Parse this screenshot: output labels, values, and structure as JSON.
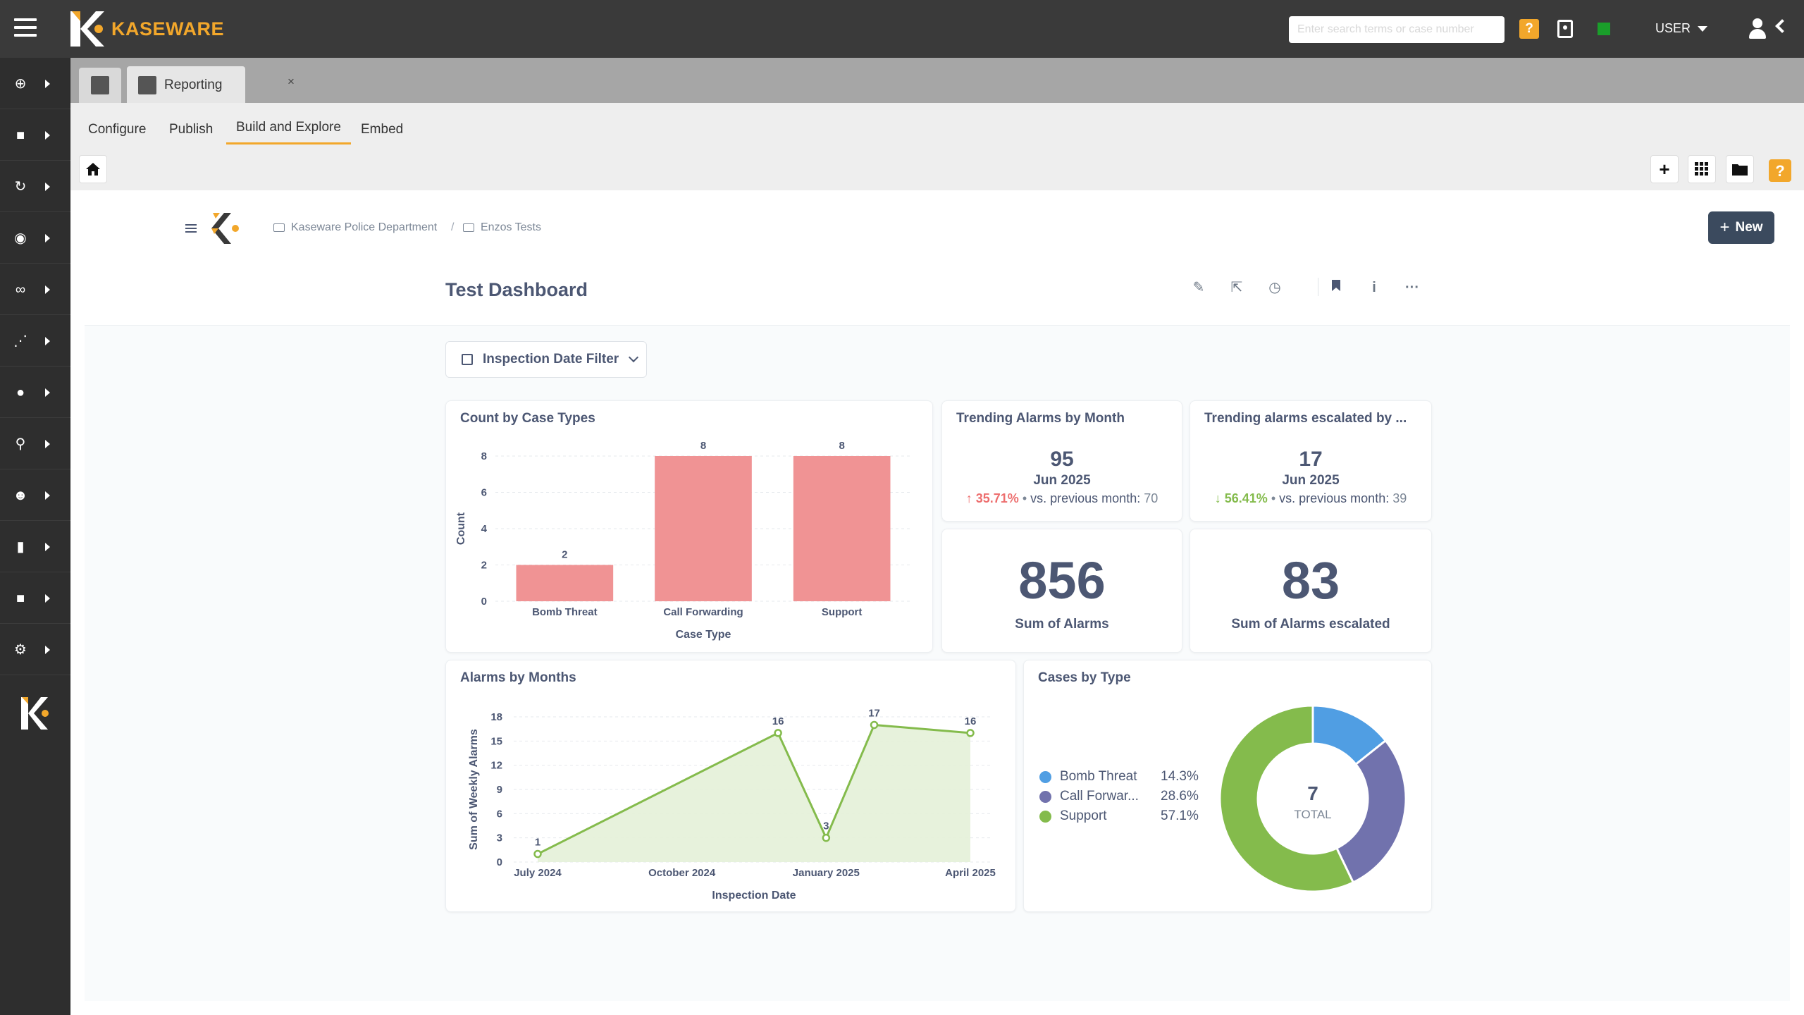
{
  "app": {
    "brand": "KASEWARE"
  },
  "topbar": {
    "search_placeholder": "Enter search terms or case number",
    "help_label": "?",
    "user_label": "USER"
  },
  "tabs": {
    "report_label": "Reporting",
    "close_label": "×"
  },
  "subnav": {
    "items": [
      "Configure",
      "Publish",
      "Build and Explore",
      "Embed"
    ],
    "active": "Build and Explore"
  },
  "breadcrumb": {
    "items": [
      "Kaseware Police Department",
      "Enzos Tests"
    ],
    "separator": "/"
  },
  "new_button": {
    "label": "New"
  },
  "dashboard": {
    "title": "Test Dashboard"
  },
  "filter": {
    "label": "Inspection Date Filter"
  },
  "colors": {
    "accent": "#f2a72b",
    "bar": "#f09394",
    "area_line": "#84bb4c",
    "area_fill": "#e4f1d8",
    "donut": [
      "#509ee3",
      "#7172ad",
      "#84bb4c"
    ],
    "up": "#ed6e6e",
    "down": "#84bb4c"
  },
  "cards": {
    "count_by_case_types": {
      "title": "Count by Case Types"
    },
    "trend_alarms": {
      "title": "Trending Alarms by Month",
      "value": "95",
      "date": "Jun 2025",
      "change": "35.71%",
      "compare_label": "vs. previous month:",
      "compare_value": "70"
    },
    "trend_escalated": {
      "title": "Trending alarms escalated by ...",
      "value": "17",
      "date": "Jun 2025",
      "change": "56.41%",
      "compare_label": "vs. previous month:",
      "compare_value": "39"
    },
    "sum_alarms": {
      "value": "856",
      "label": "Sum of Alarms"
    },
    "sum_escalated": {
      "value": "83",
      "label": "Sum of Alarms escalated"
    },
    "alarms_by_months": {
      "title": "Alarms by Months"
    },
    "cases_by_type": {
      "title": "Cases by Type",
      "total_value": "7",
      "total_label": "TOTAL"
    }
  },
  "chart_data": [
    {
      "type": "bar",
      "title": "Count by Case Types",
      "categories": [
        "Bomb Threat",
        "Call Forwarding",
        "Support"
      ],
      "values": [
        2,
        8,
        8
      ],
      "data_labels": [
        "2",
        "8",
        "8"
      ],
      "xlabel": "Case Type",
      "ylabel": "Count",
      "ylim": [
        0,
        8
      ],
      "yticks": [
        "0",
        "2",
        "4",
        "6",
        "8"
      ],
      "grid": true
    },
    {
      "type": "area",
      "title": "Alarms by Months",
      "x": [
        "2024-07",
        "2024-12",
        "2025-01",
        "2025-02",
        "2025-04"
      ],
      "values": [
        1,
        16,
        3,
        17,
        16
      ],
      "data_labels": [
        "1",
        "16",
        "3",
        "17",
        "16"
      ],
      "xticks": [
        "July 2024",
        "October 2024",
        "January 2025",
        "April 2025"
      ],
      "xtick_dates": [
        "2024-07",
        "2024-10",
        "2025-01",
        "2025-04"
      ],
      "xlabel": "Inspection Date",
      "ylabel": "Sum of Weekly Alarms",
      "ylim": [
        0,
        18
      ],
      "yticks": [
        "0",
        "3",
        "6",
        "9",
        "12",
        "15",
        "18"
      ],
      "grid": true
    },
    {
      "type": "pie",
      "title": "Cases by Type",
      "labels": [
        "Bomb Threat",
        "Call Forwar...",
        "Support"
      ],
      "percent_labels": [
        "14.3%",
        "28.6%",
        "57.1%"
      ],
      "values": [
        1,
        2,
        4
      ],
      "legend": "left"
    }
  ]
}
